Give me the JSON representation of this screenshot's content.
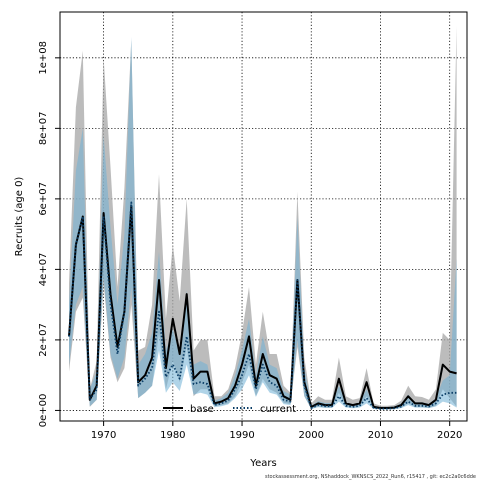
{
  "chart_data": {
    "type": "line",
    "title": "",
    "xlabel": "Years",
    "ylabel": "Recruits (age 0)",
    "xlim": [
      1963.7,
      2022.5
    ],
    "ylim": [
      -3000000,
      113000000
    ],
    "x_ticks": [
      1970,
      1980,
      1990,
      2000,
      2010,
      2020
    ],
    "y_ticks": [
      0,
      20000000,
      40000000,
      60000000,
      80000000,
      100000000
    ],
    "x_tick_labels": [
      "1970",
      "1980",
      "1990",
      "2000",
      "2010",
      "2020"
    ],
    "y_tick_labels": [
      "0e+00",
      "2e+07",
      "4e+07",
      "6e+07",
      "8e+07",
      "1e+08"
    ],
    "grid": true,
    "legend_position": "bottom-center",
    "footnote": "stockassessment.org, NShaddock_WKNSCS_2022_Run6, r15417 , git: ec2c2a0c6dde",
    "x": [
      1965,
      1966,
      1967,
      1968,
      1969,
      1970,
      1971,
      1972,
      1973,
      1974,
      1975,
      1976,
      1977,
      1978,
      1979,
      1980,
      1981,
      1982,
      1983,
      1984,
      1985,
      1986,
      1987,
      1988,
      1989,
      1990,
      1991,
      1992,
      1993,
      1994,
      1995,
      1996,
      1997,
      1998,
      1999,
      2000,
      2001,
      2002,
      2003,
      2004,
      2005,
      2006,
      2007,
      2008,
      2009,
      2010,
      2011,
      2012,
      2013,
      2014,
      2015,
      2016,
      2017,
      2018,
      2019,
      2020,
      2021
    ],
    "series": [
      {
        "name": "base",
        "color": "#000000",
        "band_color": "#a6a6a6",
        "line_style": "solid",
        "values": [
          21000000,
          47000000,
          55000000,
          3000000,
          7000000,
          56000000,
          33000000,
          18000000,
          28000000,
          58000000,
          8000000,
          10000000,
          15000000,
          37000000,
          12000000,
          26000000,
          16000000,
          33000000,
          9000000,
          11000000,
          11000000,
          2000000,
          2500000,
          3500000,
          7000000,
          13000000,
          21000000,
          7000000,
          16000000,
          10000000,
          9000000,
          4000000,
          3000000,
          37000000,
          8000000,
          1000000,
          2000000,
          1500000,
          1500000,
          9000000,
          2000000,
          1500000,
          2000000,
          8000000,
          1000000,
          700000,
          700000,
          800000,
          1500000,
          4000000,
          2000000,
          2000000,
          1500000,
          3000000,
          13000000,
          11000000,
          10500000
        ],
        "lower": [
          11000000,
          28000000,
          32000000,
          1000000,
          3000000,
          36000000,
          15000000,
          8000000,
          12000000,
          30000000,
          3500000,
          5000000,
          7000000,
          22000000,
          6000000,
          14000000,
          8000000,
          18000000,
          4000000,
          6000000,
          6000000,
          1200000,
          1500000,
          2000000,
          4000000,
          8000000,
          13000000,
          4000000,
          9000000,
          6000000,
          5000000,
          2200000,
          1800000,
          18000000,
          4000000,
          500000,
          1100000,
          800000,
          800000,
          5000000,
          1100000,
          800000,
          1100000,
          4000000,
          500000,
          350000,
          350000,
          400000,
          800000,
          2000000,
          1000000,
          1000000,
          700000,
          1300000,
          6000000,
          3500000,
          1000000
        ],
        "upper": [
          36000000,
          86000000,
          102000000,
          6000000,
          14000000,
          100000000,
          69000000,
          35000000,
          63000000,
          105000000,
          17000000,
          18000000,
          30000000,
          67000000,
          26000000,
          47000000,
          31000000,
          60000000,
          17000000,
          20000000,
          20000000,
          4000000,
          4000000,
          6000000,
          12000000,
          22000000,
          35000000,
          13000000,
          28000000,
          16000000,
          16000000,
          7000000,
          5000000,
          62000000,
          15000000,
          2000000,
          4000000,
          3000000,
          3000000,
          15000000,
          4000000,
          3000000,
          3500000,
          12000000,
          2000000,
          1300000,
          1300000,
          1500000,
          2800000,
          7000000,
          4000000,
          3800000,
          3000000,
          6000000,
          22000000,
          20000000,
          109000000
        ]
      },
      {
        "name": "current",
        "color": "#0a3d66",
        "band_color": "#6fb1d6",
        "line_style": "dotted",
        "values": [
          21000000,
          47000000,
          55000000,
          3000000,
          6000000,
          55000000,
          30000000,
          16000000,
          28000000,
          59000000,
          7000000,
          9000000,
          12000000,
          28000000,
          9500000,
          13000000,
          9000000,
          21000000,
          7500000,
          8000000,
          7500000,
          1500000,
          2000000,
          2800000,
          6000000,
          10000000,
          16000000,
          6000000,
          13000000,
          8000000,
          7000000,
          3000000,
          2500000,
          37000000,
          7000000,
          700000,
          1500000,
          1200000,
          1200000,
          4000000,
          1300000,
          1000000,
          1300000,
          3500000,
          700000,
          500000,
          500000,
          600000,
          1100000,
          2500000,
          1300000,
          1300000,
          1100000,
          2000000,
          4500000,
          5000000,
          5000000
        ],
        "lower": [
          13000000,
          30000000,
          35000000,
          1200000,
          3000000,
          38000000,
          16000000,
          9000000,
          15000000,
          35000000,
          3500000,
          5000000,
          7000000,
          17000000,
          5000000,
          8000000,
          5500000,
          13000000,
          4500000,
          5000000,
          4500000,
          900000,
          1200000,
          1700000,
          3500000,
          6000000,
          10000000,
          3800000,
          8000000,
          5000000,
          4500000,
          1800000,
          1500000,
          20000000,
          4000000,
          400000,
          900000,
          700000,
          700000,
          2500000,
          800000,
          600000,
          800000,
          2000000,
          400000,
          300000,
          300000,
          350000,
          650000,
          1500000,
          800000,
          800000,
          650000,
          1100000,
          2500000,
          2000000,
          800000
        ],
        "upper": [
          30000000,
          68000000,
          80000000,
          6000000,
          11000000,
          78000000,
          52000000,
          30000000,
          50000000,
          106000000,
          13000000,
          16000000,
          22000000,
          45000000,
          17000000,
          23000000,
          16000000,
          34000000,
          13000000,
          14000000,
          13000000,
          2800000,
          3500000,
          5000000,
          10000000,
          17000000,
          26000000,
          10000000,
          21000000,
          13000000,
          12000000,
          5500000,
          4500000,
          55000000,
          12000000,
          1300000,
          2600000,
          2100000,
          2100000,
          7000000,
          2300000,
          1800000,
          2300000,
          6000000,
          1300000,
          900000,
          900000,
          1100000,
          2000000,
          4500000,
          2300000,
          2300000,
          1900000,
          3500000,
          8500000,
          10000000,
          43000000
        ]
      }
    ]
  }
}
